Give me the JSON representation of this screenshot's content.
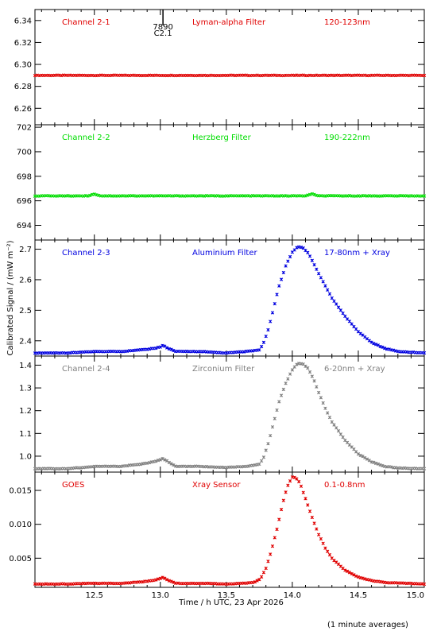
{
  "figure": {
    "ylabel": "Calibrated Signal / (mW m⁻²)",
    "xlabel": "Time / h UTC, 23 Apr 2026",
    "footer": "(1 minute averages)",
    "marker": {
      "line1": "7890",
      "line2": "C2.1"
    }
  },
  "chart_data": [
    {
      "type": "scatter",
      "panel": "channel-2-1",
      "channel": "Channel 2-1",
      "filter": "Lyman-alpha Filter",
      "band": "120-123nm",
      "color": "#e00000",
      "xlim": [
        12.05,
        15.0
      ],
      "ylim": [
        6.245,
        6.35
      ],
      "yticks": [
        6.26,
        6.28,
        6.3,
        6.32,
        6.34
      ],
      "ytick_labels": [
        "6.26",
        "6.28",
        "6.30",
        "6.32",
        "6.34"
      ],
      "series": [
        {
          "x": [
            12.05,
            15.0
          ],
          "y": [
            6.29,
            6.29
          ]
        }
      ]
    },
    {
      "type": "scatter",
      "panel": "channel-2-2",
      "channel": "Channel 2-2",
      "filter": "Herzberg Filter",
      "band": "190-222nm",
      "color": "#00dd00",
      "xlim": [
        12.05,
        15.0
      ],
      "ylim": [
        692.8,
        702.2
      ],
      "yticks": [
        694,
        696,
        698,
        700,
        702
      ],
      "ytick_labels": [
        "694",
        "696",
        "698",
        "700",
        "702"
      ],
      "series": [
        {
          "x": [
            12.05,
            12.45,
            12.5,
            12.55,
            14.1,
            14.15,
            14.2,
            15.0
          ],
          "y": [
            696.4,
            696.4,
            696.55,
            696.4,
            696.4,
            696.55,
            696.4,
            696.4
          ]
        }
      ]
    },
    {
      "type": "scatter",
      "panel": "channel-2-3",
      "channel": "Channel 2-3",
      "filter": "Aluminium Filter",
      "band": "17-80nm + Xray",
      "color": "#0000e0",
      "xlim": [
        12.05,
        15.0
      ],
      "ylim": [
        2.35,
        2.73
      ],
      "yticks": [
        2.4,
        2.5,
        2.6,
        2.7
      ],
      "ytick_labels": [
        "2.4",
        "2.5",
        "2.6",
        "2.7"
      ],
      "series": [
        {
          "x": [
            12.05,
            12.3,
            12.5,
            12.7,
            12.85,
            12.95,
            13.0,
            13.02,
            13.06,
            13.12,
            13.3,
            13.5,
            13.65,
            13.75,
            13.78,
            13.82,
            13.86,
            13.9,
            13.95,
            14.0,
            14.04,
            14.08,
            14.12,
            14.16,
            14.2,
            14.25,
            14.3,
            14.4,
            14.5,
            14.6,
            14.7,
            14.8,
            15.0
          ],
          "y": [
            2.36,
            2.36,
            2.365,
            2.365,
            2.37,
            2.375,
            2.38,
            2.385,
            2.375,
            2.365,
            2.365,
            2.36,
            2.365,
            2.37,
            2.39,
            2.44,
            2.51,
            2.58,
            2.645,
            2.69,
            2.708,
            2.705,
            2.688,
            2.655,
            2.62,
            2.58,
            2.54,
            2.48,
            2.43,
            2.395,
            2.375,
            2.365,
            2.36
          ]
        }
      ]
    },
    {
      "type": "scatter",
      "panel": "channel-2-4",
      "channel": "Channel 2-4",
      "filter": "Zirconium Filter",
      "band": "6-20nm + Xray",
      "color": "#808080",
      "xlim": [
        12.05,
        15.0
      ],
      "ylim": [
        0.93,
        1.44
      ],
      "yticks": [
        1.0,
        1.1,
        1.2,
        1.3,
        1.4
      ],
      "ytick_labels": [
        "1.0",
        "1.1",
        "1.2",
        "1.3",
        "1.4"
      ],
      "series": [
        {
          "x": [
            12.05,
            12.3,
            12.5,
            12.7,
            12.85,
            12.95,
            13.0,
            13.02,
            13.06,
            13.12,
            13.3,
            13.5,
            13.65,
            13.75,
            13.78,
            13.82,
            13.86,
            13.9,
            13.95,
            14.0,
            14.04,
            14.08,
            14.12,
            14.16,
            14.2,
            14.25,
            14.3,
            14.4,
            14.5,
            14.6,
            14.7,
            14.8,
            15.0
          ],
          "y": [
            0.945,
            0.945,
            0.955,
            0.955,
            0.965,
            0.975,
            0.985,
            0.99,
            0.975,
            0.955,
            0.955,
            0.95,
            0.955,
            0.965,
            0.99,
            1.06,
            1.15,
            1.24,
            1.32,
            1.38,
            1.408,
            1.405,
            1.385,
            1.34,
            1.28,
            1.21,
            1.15,
            1.07,
            1.01,
            0.975,
            0.955,
            0.948,
            0.945
          ]
        }
      ]
    },
    {
      "type": "scatter",
      "panel": "goes",
      "channel": "GOES",
      "filter": "Xray Sensor",
      "band": "0.1-0.8nm",
      "color": "#e00000",
      "xlim": [
        12.05,
        15.0
      ],
      "ylim": [
        0.0007,
        0.0177
      ],
      "yticks": [
        0.005,
        0.01,
        0.015
      ],
      "ytick_labels": [
        "0.005",
        "0.010",
        "0.015"
      ],
      "xticks": [
        12.5,
        13.0,
        13.5,
        14.0,
        14.5,
        15.0
      ],
      "xtick_labels": [
        "12.5",
        "13.0",
        "13.5",
        "14.0",
        "14.5",
        "15.0"
      ],
      "series": [
        {
          "x": [
            12.05,
            12.3,
            12.5,
            12.7,
            12.85,
            12.95,
            13.0,
            13.02,
            13.06,
            13.12,
            13.3,
            13.5,
            13.65,
            13.72,
            13.76,
            13.8,
            13.84,
            13.88,
            13.92,
            13.96,
            14.0,
            14.03,
            14.06,
            14.1,
            14.15,
            14.2,
            14.25,
            14.3,
            14.4,
            14.5,
            14.6,
            14.7,
            15.0
          ],
          "y": [
            0.0012,
            0.0012,
            0.0013,
            0.0013,
            0.0015,
            0.0017,
            0.002,
            0.0022,
            0.0017,
            0.0013,
            0.0013,
            0.0012,
            0.0013,
            0.0015,
            0.002,
            0.0035,
            0.006,
            0.009,
            0.0125,
            0.0155,
            0.017,
            0.0168,
            0.016,
            0.0138,
            0.011,
            0.0085,
            0.0065,
            0.005,
            0.0032,
            0.0022,
            0.0017,
            0.0014,
            0.0012
          ]
        }
      ]
    }
  ]
}
